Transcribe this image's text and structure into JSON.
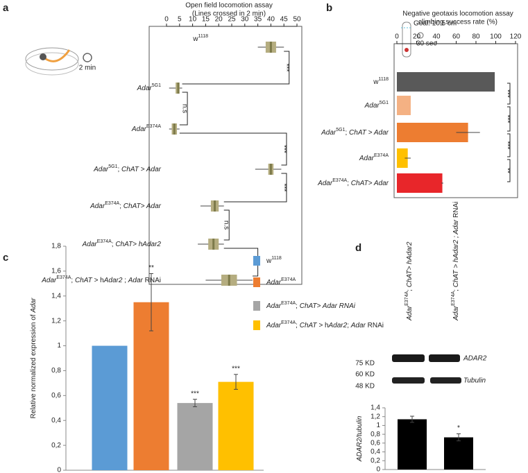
{
  "chart_data": [
    {
      "type": "box",
      "panel": "a",
      "title": [
        "Open field locomotion assay",
        "(Lines crossed in 2 min)"
      ],
      "icon_text": "2 min",
      "categories": [
        [
          [
            "w",
            "n"
          ],
          [
            "1118",
            "sup"
          ]
        ],
        [
          [
            "Adar",
            "i"
          ],
          [
            "5G1",
            "sup"
          ]
        ],
        [
          [
            "Adar",
            "i"
          ],
          [
            "E374A",
            "sup"
          ]
        ],
        [
          [
            "Adar",
            "i"
          ],
          [
            "5G1",
            "sup"
          ],
          [
            "; ",
            "n"
          ],
          [
            "ChAT > Adar",
            "i"
          ]
        ],
        [
          [
            "Adar",
            "i"
          ],
          [
            "E374A",
            "sup"
          ],
          [
            "; ",
            "n"
          ],
          [
            "ChAT> Adar",
            "i"
          ]
        ],
        [
          [
            "Adar",
            "i"
          ],
          [
            "E374A",
            "sup"
          ],
          [
            "; ",
            "n"
          ],
          [
            "ChAT> hAdar2",
            "i"
          ]
        ],
        [
          [
            "Adar",
            "i"
          ],
          [
            "E374A",
            "sup"
          ],
          [
            "; ",
            "n"
          ],
          [
            "ChAT > ",
            "i"
          ],
          [
            "h",
            "n"
          ],
          [
            "Adar2",
            "i"
          ],
          [
            " ; ",
            "n"
          ],
          [
            "Adar",
            "i"
          ],
          [
            " RNAi",
            "n"
          ]
        ]
      ],
      "stats": [
        {
          "min": 35,
          "q1": 38,
          "median": 40,
          "q3": 42,
          "max": 45
        },
        {
          "min": 1,
          "q1": 3.5,
          "median": 4.5,
          "q3": 5,
          "max": 6
        },
        {
          "min": 1,
          "q1": 2,
          "median": 3,
          "q3": 4,
          "max": 5
        },
        {
          "min": 34,
          "q1": 39,
          "median": 40,
          "q3": 41,
          "max": 44
        },
        {
          "min": 13,
          "q1": 17,
          "median": 18.5,
          "q3": 20,
          "max": 22
        },
        {
          "min": 12,
          "q1": 16,
          "median": 18,
          "q3": 20,
          "max": 22
        },
        {
          "min": 15,
          "q1": 21,
          "median": 24,
          "q3": 27,
          "max": 33
        }
      ],
      "significance": [
        "***",
        "n.s",
        "***",
        "***",
        "n.s",
        "**"
      ],
      "xlim": [
        0,
        50
      ],
      "xticks": [
        0,
        5,
        10,
        15,
        20,
        25,
        30,
        35,
        40,
        45,
        50
      ],
      "color": "#b5ad80",
      "median_color": "#7d7a4a"
    },
    {
      "type": "hbar",
      "panel": "b",
      "title": [
        "Negative geotaxis locomotion assay",
        "climbing success rate (%)"
      ],
      "icon_text": [
        "Goal: 10.5 cm",
        "30 sec"
      ],
      "categories": [
        [
          [
            "w",
            "n"
          ],
          [
            "1118",
            "sup"
          ]
        ],
        [
          [
            "Adar",
            "i"
          ],
          [
            "5G1",
            "sup"
          ]
        ],
        [
          [
            "Adar",
            "i"
          ],
          [
            "5G1",
            "sup"
          ],
          [
            "; ",
            "n"
          ],
          [
            "ChAT > Adar",
            "i"
          ]
        ],
        [
          [
            "Adar",
            "i"
          ],
          [
            "E374A",
            "sup"
          ]
        ],
        [
          [
            "Adar",
            "i"
          ],
          [
            "E374A",
            "sup"
          ],
          [
            "; ",
            "n"
          ],
          [
            "ChAT> Adar",
            "i"
          ]
        ]
      ],
      "values": [
        99,
        14,
        72,
        11,
        46
      ],
      "errors": [
        0,
        0,
        12,
        3,
        1
      ],
      "colors": [
        "#595959",
        "#f4b183",
        "#ed7d31",
        "#ffc000",
        "#e8262a"
      ],
      "significance": [
        "***",
        "***",
        "***",
        "**"
      ],
      "xlim": [
        0,
        120
      ],
      "xticks": [
        0,
        20,
        40,
        60,
        80,
        100,
        120
      ]
    },
    {
      "type": "bar",
      "panel": "c",
      "ylabel": [
        [
          "Relative normalized expression of ",
          "n"
        ],
        [
          "Adar",
          "i"
        ]
      ],
      "categories": [
        [
          [
            "w",
            "n"
          ],
          [
            "1118",
            "sup"
          ]
        ],
        [
          [
            "Adar",
            "i"
          ],
          [
            "E374A",
            "sup"
          ]
        ],
        [
          [
            "Adar",
            "i"
          ],
          [
            "E374A",
            "sup"
          ],
          [
            "; ",
            "n"
          ],
          [
            "ChAT> Adar RNAi",
            "i"
          ]
        ],
        [
          [
            "Adar",
            "i"
          ],
          [
            "E374A",
            "sup"
          ],
          [
            "; ",
            "n"
          ],
          [
            "ChAT > ",
            "i"
          ],
          [
            "h",
            "n"
          ],
          [
            "Adar2",
            "i"
          ],
          [
            "; ",
            "n"
          ],
          [
            "Adar",
            "i"
          ],
          [
            " RNAi",
            "n"
          ]
        ]
      ],
      "values": [
        1,
        1.35,
        0.54,
        0.71
      ],
      "errors": [
        0,
        0.23,
        0.03,
        0.06
      ],
      "colors": [
        "#5b9bd5",
        "#ed7d31",
        "#a5a5a5",
        "#ffc000"
      ],
      "significance": [
        null,
        "**",
        "***",
        "***"
      ],
      "legend": true,
      "ylim": [
        0,
        1.8
      ],
      "yticks": [
        0,
        {
          "value": 0.2,
          "label": "0,2"
        },
        {
          "value": 0.4,
          "label": "0,4"
        },
        {
          "value": 0.6,
          "label": "0,6"
        },
        {
          "value": 0.8,
          "label": "0,8"
        },
        1,
        {
          "value": 1.2,
          "label": "1,2"
        },
        {
          "value": 1.4,
          "label": "1,4"
        },
        {
          "value": 1.6,
          "label": "1,6"
        },
        {
          "value": 1.8,
          "label": "1,8"
        }
      ]
    },
    {
      "type": "bar",
      "panel": "d",
      "ylabel": [
        [
          "ADAR2/tubulin",
          "i"
        ]
      ],
      "categories": [
        [
          [
            "Adar",
            "i"
          ],
          [
            "E374A",
            "sup"
          ],
          [
            "; ",
            "n"
          ],
          [
            "ChAT> hAdar2",
            "i"
          ]
        ],
        [
          [
            "Adar",
            "i"
          ],
          [
            "E374A",
            "sup"
          ],
          [
            "; ",
            "n"
          ],
          [
            "ChAT > hAdar2 ; Adar ",
            "i"
          ],
          [
            "RNAi",
            "n"
          ]
        ]
      ],
      "blot_markers": [
        "75 KD",
        "60 KD",
        "48 KD"
      ],
      "blot_labels": [
        "ADAR2",
        "Tubulin"
      ],
      "values": [
        1.14,
        0.73
      ],
      "errors": [
        0.07,
        0.08
      ],
      "colors": [
        "#000000",
        "#000000"
      ],
      "significance": [
        null,
        "*"
      ],
      "ylim": [
        0,
        1.4
      ],
      "yticks": [
        0,
        {
          "value": 0.2,
          "label": "0,2"
        },
        {
          "value": 0.4,
          "label": "0,4"
        },
        {
          "value": 0.6,
          "label": "0,6"
        },
        {
          "value": 0.8,
          "label": "0,8"
        },
        1,
        {
          "value": 1.2,
          "label": "1,2"
        },
        {
          "value": 1.4,
          "label": "1,4"
        }
      ]
    }
  ]
}
